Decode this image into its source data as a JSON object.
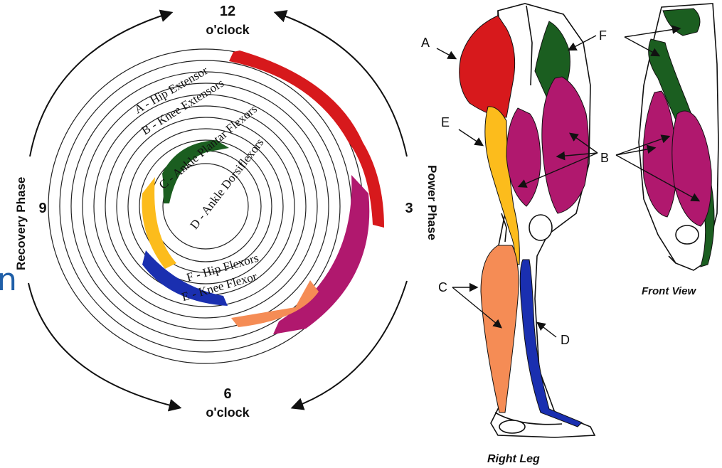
{
  "clock": {
    "twelve": "12",
    "twelve_unit": "o'clock",
    "six": "6",
    "six_unit": "o'clock",
    "three": "3",
    "nine": "9",
    "power_phase": "Power Phase",
    "recovery_phase": "Recovery Phase"
  },
  "ring_labels": {
    "a": "A - Hip Extensor",
    "b": "B - Knee Extensors",
    "c": "C - Ankle Plantar Flexors",
    "d": "D - Ankle Dorsiflexors",
    "f": "F - Hip Flexors",
    "e": "E - Knee Flexor"
  },
  "leg": {
    "marker_a": "A",
    "marker_b": "B",
    "marker_c": "C",
    "marker_d": "D",
    "marker_e": "E",
    "marker_f": "F",
    "caption_right": "Right Leg",
    "caption_front": "Front View"
  },
  "partial_text": "n",
  "colors": {
    "hip_extensor": "#d7191c",
    "knee_extensors": "#b0186e",
    "ankle_plantar": "#f58c55",
    "ankle_dorsi": "#1b5e20",
    "hip_flexors": "#fcbc1c",
    "knee_flexor": "#1a2fb0",
    "text_blue": "#1f5fa8"
  }
}
